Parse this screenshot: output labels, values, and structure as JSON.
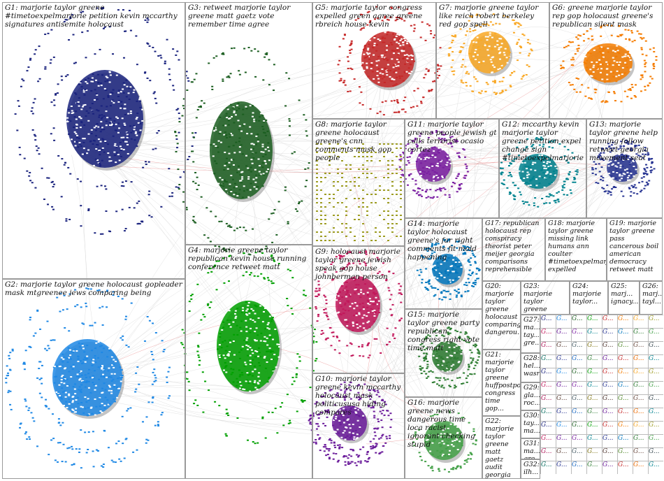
{
  "groups": [
    {
      "id": "G1",
      "label": "G1: marjorie taylor greene #timetoexpelmarjorie petition kevin mccarthy signatures antisemite holocaust",
      "color": "#1a237e"
    },
    {
      "id": "G2",
      "label": "G2: marjorie taylor greene holocaust gopleader mask mtgreenee jews comparing being",
      "color": "#1e88e5"
    },
    {
      "id": "G3",
      "label": "G3: retweet marjorie taylor greene matt gaetz vote remember time agree",
      "color": "#1b5e20"
    },
    {
      "id": "G4",
      "label": "G4: marjorie greene taylor republican kevin house running conference retweet matt",
      "color": "#00a000"
    },
    {
      "id": "G5",
      "label": "G5: marjorie taylor congress expelled green agree greene rbreich house kevin",
      "color": "#c62828"
    },
    {
      "id": "G6",
      "label": "G6: greene marjorie taylor rep gop holocaust greene's republican silent mask",
      "color": "#f57c00"
    },
    {
      "id": "G7",
      "label": "G7: marjorie greene taylor like reich robert berkeley red gop spell",
      "color": "#f9a825"
    },
    {
      "id": "G8",
      "label": "G8: marjorie taylor greene holocaust greene's cnn comments mask gop people",
      "color": "#9e9d24"
    },
    {
      "id": "G9",
      "label": "G9: holocaust marjorie taylor greene jewish speak gop house johnberman person",
      "color": "#c2185b"
    },
    {
      "id": "G10",
      "label": "G10: marjorie taylor greene kevin mccarthy holocaust mask politicususa hiding compares",
      "color": "#6a1b9a"
    },
    {
      "id": "G11",
      "label": "G11: marjorie taylor greene people jewish gt calls terrorist ocasio cortez",
      "color": "#7b1fa2"
    },
    {
      "id": "G12",
      "label": "G12: mccarthy kevin marjorie taylor greene petition expel change sign #timetoexpelmarjorie",
      "color": "#00838f"
    },
    {
      "id": "G13",
      "label": "G13: marjorie taylor greene help running follow retweet georgia movement seat",
      "color": "#283593"
    },
    {
      "id": "G14",
      "label": "G14: marjorie taylor holocaust greene's far right comments fit mold happening",
      "color": "#0277bd"
    },
    {
      "id": "G15",
      "label": "G15: marjorie taylor greene party republican congress right vote time matt",
      "color": "#2e7d32"
    },
    {
      "id": "G16",
      "label": "G16: marjorie greene news dangerous time loca racist ignorant checking stupid",
      "color": "#43a047"
    },
    {
      "id": "G17",
      "label": "G17: republican holocaust rep conspiracy theorist peter meijer georgia comparisons reprehensible",
      "color": "#ad1457"
    },
    {
      "id": "G18",
      "label": "G18: marjorie taylor greene missing link humans ann coulter #timetoexpelmarj... expelled",
      "color": "#5d4037"
    },
    {
      "id": "G19",
      "label": "G19: marjorie taylor greene pass cancerous boil american democracy retweet matt",
      "color": "#455a64"
    },
    {
      "id": "G20",
      "label": "G20: marjorie taylor greene holocaust comparing dangerou...",
      "color": "#827717"
    },
    {
      "id": "G21",
      "label": "G21: marjorie taylor greene huffpostpol congress time gop...",
      "color": "#4e342e"
    },
    {
      "id": "G22",
      "label": "G22: marjorie taylor greene matt gaetz audit georgia country...",
      "color": "#558b2f"
    },
    {
      "id": "G23",
      "label": "G23: marjorie taylor greene meghan...",
      "color": "#6d4c41"
    },
    {
      "id": "G24",
      "label": "G24: marjorie taylor...",
      "color": "#37474f"
    },
    {
      "id": "G25",
      "label": "G25: marj... ignacy...",
      "color": "#00695c"
    },
    {
      "id": "G26",
      "label": "G26: marj... tayl...",
      "color": "#283593"
    },
    {
      "id": "G27",
      "label": "G27: ma... tay... gre...",
      "color": "#1565c0"
    },
    {
      "id": "G28",
      "label": "G28: hel... wasr",
      "color": "#2e7d32"
    },
    {
      "id": "G29",
      "label": "G29: gla... roc...",
      "color": "#6a1b9a"
    },
    {
      "id": "G30",
      "label": "G30: tay... ma...",
      "color": "#c62828"
    },
    {
      "id": "G31",
      "label": "G31: ma... gre...",
      "color": "#ef6c00"
    },
    {
      "id": "G32",
      "label": "G32: ilh... om...",
      "color": "#00838f"
    }
  ],
  "mini_labels": [
    "G...",
    "G...",
    "G...",
    "G...",
    "G...",
    "G..."
  ]
}
